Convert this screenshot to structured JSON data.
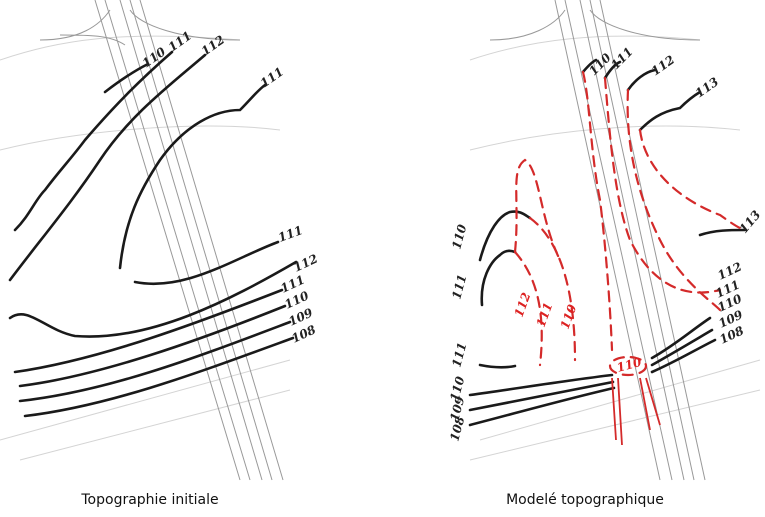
{
  "panels": [
    {
      "caption": "Topographie initiale",
      "contour_labels": [
        "110",
        "111",
        "112",
        "111",
        "111",
        "112",
        "111",
        "110",
        "109",
        "108"
      ]
    },
    {
      "caption": "Modelé topographique",
      "contour_labels": [
        "110",
        "111",
        "112",
        "113",
        "113",
        "112",
        "111",
        "110",
        "109",
        "108",
        "110",
        "111",
        "112",
        "111",
        "110",
        "111",
        "110",
        "109",
        "108",
        "110"
      ]
    }
  ]
}
